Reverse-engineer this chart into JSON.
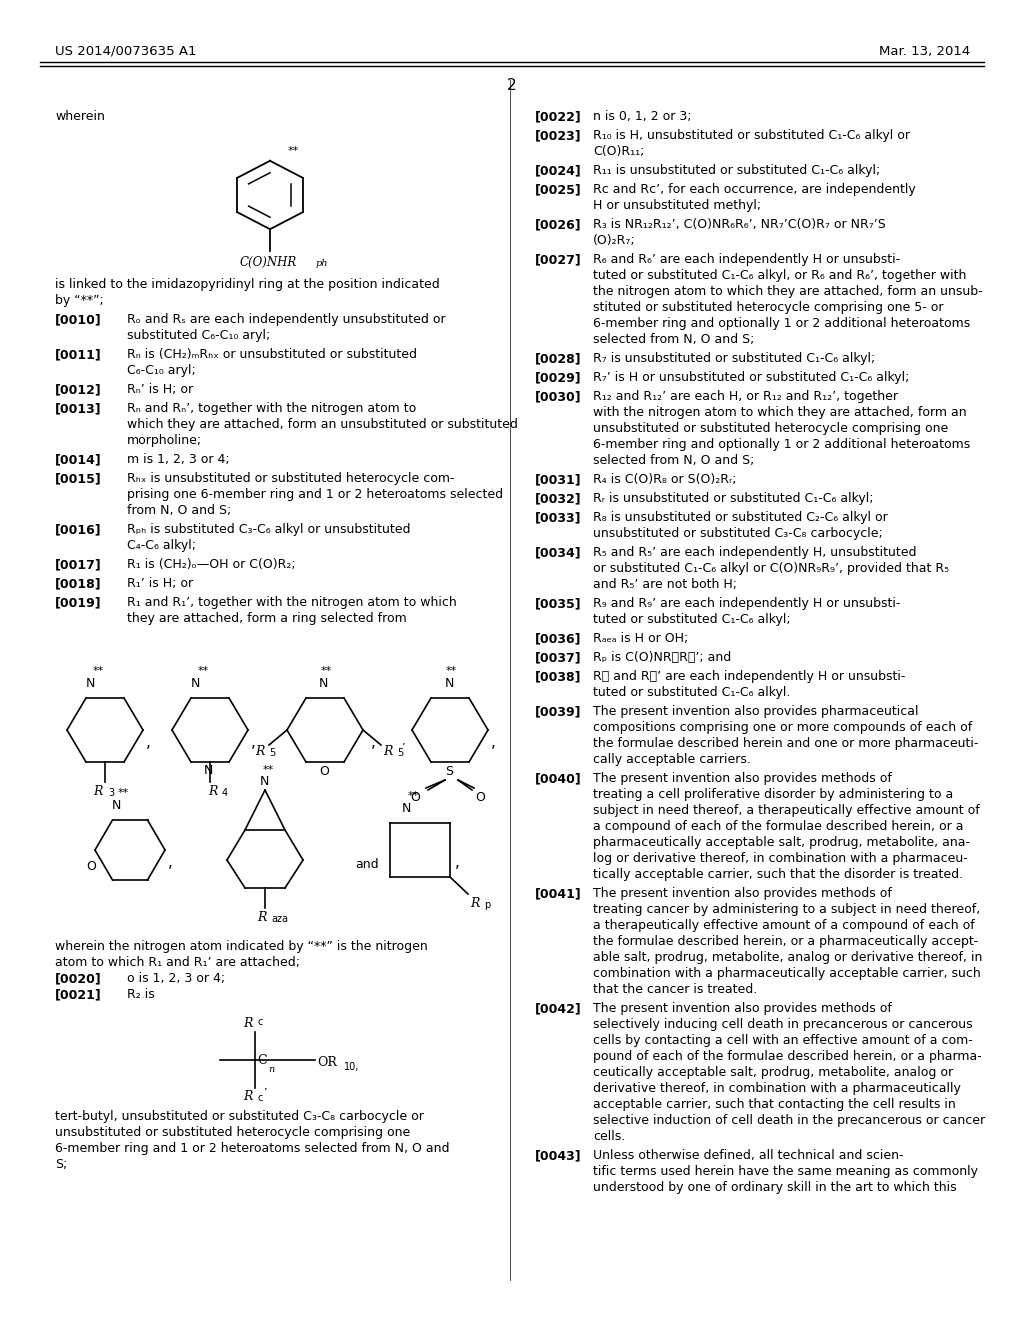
{
  "background_color": "#ffffff",
  "page_header_left": "US 2014/0073635 A1",
  "page_header_right": "Mar. 13, 2014",
  "page_number": "2"
}
